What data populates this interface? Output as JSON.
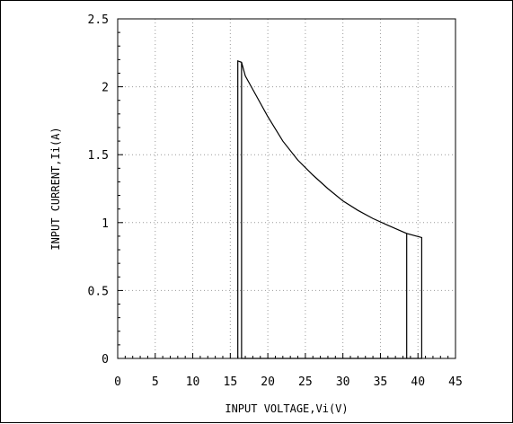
{
  "chart_data": {
    "type": "line",
    "title": "",
    "xlabel": "INPUT VOLTAGE,Vi(V)",
    "ylabel": "INPUT CURRENT,Ii(A)",
    "xlim": [
      0,
      45
    ],
    "ylim": [
      0,
      2.5
    ],
    "x_ticks": [
      0,
      5,
      10,
      15,
      20,
      25,
      30,
      35,
      40,
      45
    ],
    "y_ticks": [
      0,
      0.5,
      1,
      1.5,
      2,
      2.5
    ],
    "x_tick_labels": [
      "0",
      "5",
      "10",
      "15",
      "20",
      "25",
      "30",
      "35",
      "40",
      "45"
    ],
    "y_tick_labels": [
      "0",
      "0.5",
      "1",
      "1.5",
      "2",
      "2.5"
    ],
    "grid": true,
    "legend": false,
    "colors": {
      "line": "#000000",
      "grid": "#9a9a9a",
      "axis": "#000000",
      "background": "#ffffff"
    },
    "series": [
      {
        "x": [
          16.0,
          16.0,
          16.5,
          17,
          18,
          20,
          22,
          24,
          26,
          28,
          30,
          32,
          34,
          36,
          38.5,
          38.5,
          38.5,
          40.5,
          40.5,
          16.5,
          16.5
        ],
        "y": [
          0,
          2.19,
          2.18,
          2.08,
          1.98,
          1.78,
          1.6,
          1.46,
          1.35,
          1.25,
          1.16,
          1.09,
          1.03,
          0.98,
          0.92,
          0,
          0.92,
          0.89,
          0,
          0,
          2.18
        ]
      }
    ]
  }
}
